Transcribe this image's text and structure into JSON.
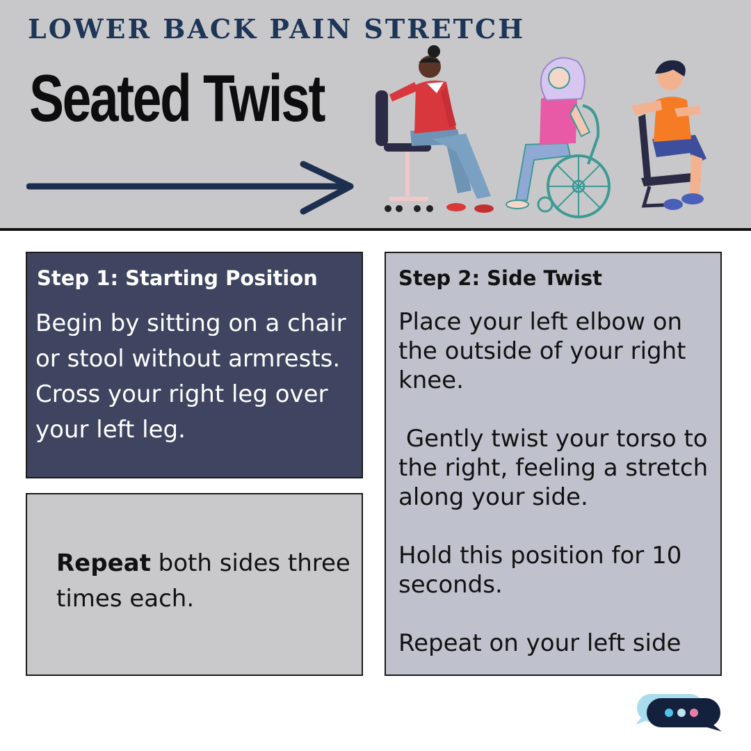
{
  "header": {
    "kicker": "Lower Back Pain Stretch",
    "title": "Seated Twist"
  },
  "step1": {
    "title": "Step 1: Starting Position",
    "text": "Begin by sitting on a chair or stool without armrests. Cross your right leg over your left leg."
  },
  "repeat": {
    "bold": "Repeat",
    "text": " both sides three times each."
  },
  "step2": {
    "title": "Step 2: Side Twist",
    "paragraphs": [
      "Place your left elbow on the outside of your right knee.",
      " Gently twist your torso to the right, feeling a stretch along your side.",
      "Hold this position for 10 seconds.",
      "Repeat on your left side"
    ]
  },
  "colors": {
    "header_bg": "#c8c8ca",
    "kicker": "#1d3557",
    "step1_bg": "#3f4560",
    "step2_bg": "#bfc2cc",
    "repeat_bg": "#c9c9cb",
    "chat_dark": "#14213d",
    "chat_light": "#a8dcef"
  },
  "icons": {
    "arrow": "arrow-right-icon",
    "people": "seated-people-illustration",
    "chat": "chat-bubble-icon"
  }
}
